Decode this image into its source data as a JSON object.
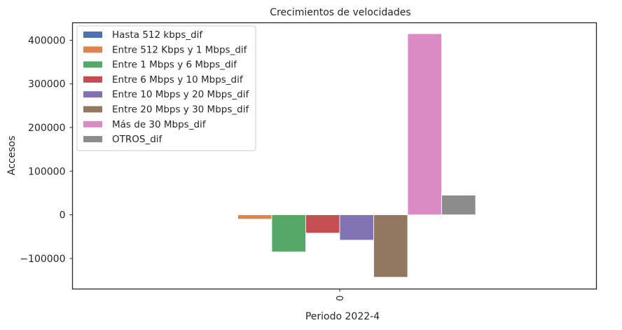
{
  "chart_data": {
    "type": "bar",
    "title": "Crecimientos de velocidades",
    "xlabel": "Periodo 2022-4",
    "ylabel": "Accesos",
    "categories": [
      "0"
    ],
    "ylim": [
      -170000,
      440000
    ],
    "yticks": [
      -100000,
      0,
      100000,
      200000,
      300000,
      400000
    ],
    "ytick_labels": [
      "−100000",
      "0",
      "100000",
      "200000",
      "300000",
      "400000"
    ],
    "grid": false,
    "legend_position": "top-left",
    "series": [
      {
        "name": "Hasta 512 kbps_dif",
        "color": "#4c72b0",
        "values": [
          -1000
        ]
      },
      {
        "name": "Entre 512 Kbps y 1 Mbps_dif",
        "color": "#dd8452",
        "values": [
          -10000
        ]
      },
      {
        "name": "Entre 1 Mbps y 6 Mbps_dif",
        "color": "#55a868",
        "values": [
          -85000
        ]
      },
      {
        "name": "Entre 6 Mbps y 10 Mbps_dif",
        "color": "#c44e52",
        "values": [
          -42000
        ]
      },
      {
        "name": "Entre 10 Mbps y 20 Mbps_dif",
        "color": "#8172b3",
        "values": [
          -58000
        ]
      },
      {
        "name": "Entre 20 Mbps y 30 Mbps_dif",
        "color": "#937860",
        "values": [
          -143000
        ]
      },
      {
        "name": "Más de 30 Mbps_dif",
        "color": "#da8bc3",
        "values": [
          415000
        ]
      },
      {
        "name": "OTROS_dif",
        "color": "#8c8c8c",
        "values": [
          45000
        ]
      }
    ]
  }
}
